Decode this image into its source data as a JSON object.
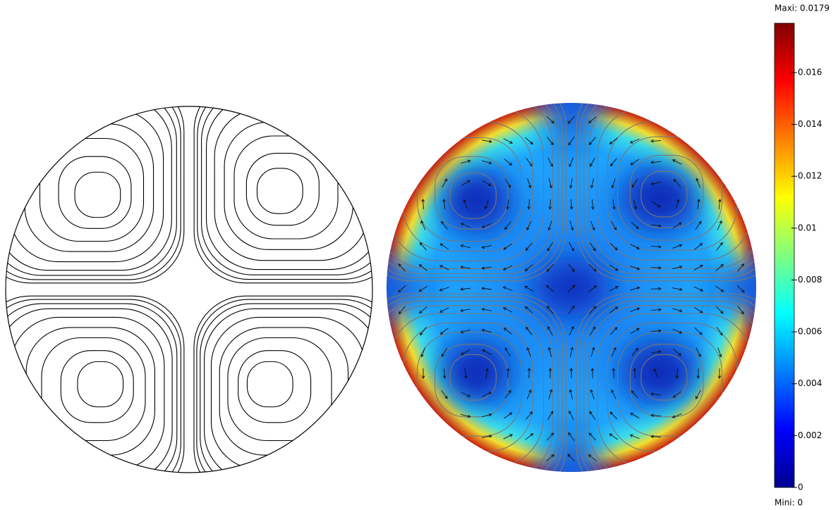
{
  "chart_data": {
    "type": "streamline",
    "colormap": "jet",
    "max_label": "Maxi: 0.0179",
    "min_label": "Mini: 0",
    "clim": [
      0,
      0.0179
    ],
    "cticks": [
      0,
      0.002,
      0.004,
      0.006,
      0.008,
      0.01,
      0.012,
      0.014,
      0.016
    ]
  }
}
